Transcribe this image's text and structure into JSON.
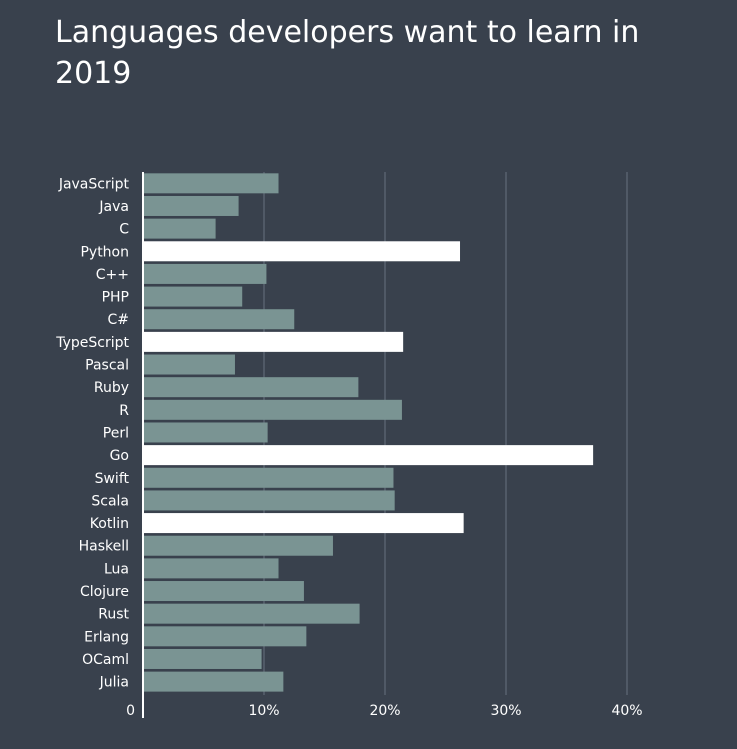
{
  "colors": {
    "background": "#39414d",
    "bar_default": "#7a9493",
    "bar_highlight": "#ffffff",
    "grid": "#66717e",
    "axis": "#ffffff",
    "text": "#ffffff"
  },
  "chart_data": {
    "type": "bar",
    "orientation": "horizontal",
    "title": "Languages developers want to learn in 2019",
    "xlabel": "",
    "ylabel": "",
    "xlim": [
      0,
      40
    ],
    "ticks": [
      {
        "value": 0,
        "label": "0"
      },
      {
        "value": 10,
        "label": "10%"
      },
      {
        "value": 20,
        "label": "20%"
      },
      {
        "value": 30,
        "label": "30%"
      },
      {
        "value": 40,
        "label": "40%"
      }
    ],
    "grid": true,
    "categories": [
      "JavaScript",
      "Java",
      "C",
      "Python",
      "C++",
      "PHP",
      "C#",
      "TypeScript",
      "Pascal",
      "Ruby",
      "R",
      "Perl",
      "Go",
      "Swift",
      "Scala",
      "Kotlin",
      "Haskell",
      "Lua",
      "Clojure",
      "Rust",
      "Erlang",
      "OCaml",
      "Julia"
    ],
    "values": [
      11.2,
      7.9,
      6.0,
      26.2,
      10.2,
      8.2,
      12.5,
      21.5,
      7.6,
      17.8,
      21.4,
      10.3,
      37.2,
      20.7,
      20.8,
      26.5,
      15.7,
      11.2,
      13.3,
      17.9,
      13.5,
      9.8,
      11.6
    ],
    "highlighted": [
      "Python",
      "TypeScript",
      "Go",
      "Kotlin"
    ]
  }
}
